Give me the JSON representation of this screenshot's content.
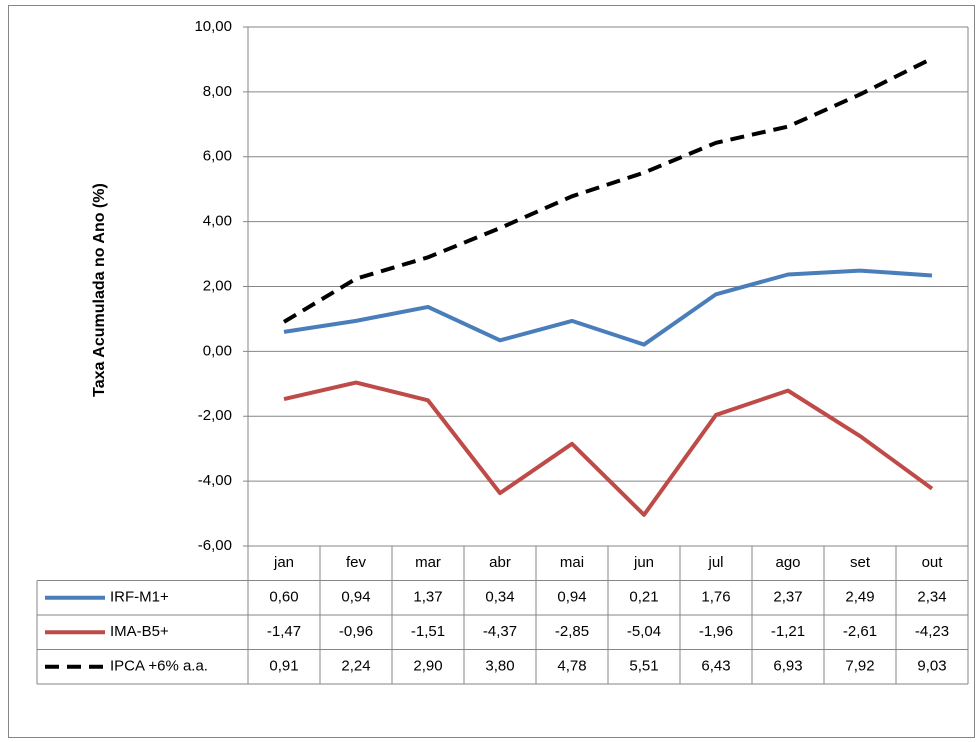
{
  "chart_data": {
    "type": "line",
    "y_label": "Taxa Acumulada no Ano (%)",
    "categories": [
      "jan",
      "fev",
      "mar",
      "abr",
      "mai",
      "jun",
      "jul",
      "ago",
      "set",
      "out"
    ],
    "series": [
      {
        "name": "IRF-M1+",
        "color": "#4a7ebb",
        "line_style": "solid",
        "values": [
          0.6,
          0.94,
          1.37,
          0.34,
          0.94,
          0.21,
          1.76,
          2.37,
          2.49,
          2.34
        ],
        "value_labels": [
          "0,60",
          "0,94",
          "1,37",
          "0,34",
          "0,94",
          "0,21",
          "1,76",
          "2,37",
          "2,49",
          "2,34"
        ]
      },
      {
        "name": "IMA-B5+",
        "color": "#be4b48",
        "line_style": "solid",
        "values": [
          -1.47,
          -0.96,
          -1.51,
          -4.37,
          -2.85,
          -5.04,
          -1.96,
          -1.21,
          -2.61,
          -4.23
        ],
        "value_labels": [
          "-1,47",
          "-0,96",
          "-1,51",
          "-4,37",
          "-2,85",
          "-5,04",
          "-1,96",
          "-1,21",
          "-2,61",
          "-4,23"
        ]
      },
      {
        "name": "IPCA +6% a.a.",
        "color": "#000000",
        "line_style": "dashed",
        "values": [
          0.91,
          2.24,
          2.9,
          3.8,
          4.78,
          5.51,
          6.43,
          6.93,
          7.92,
          9.03
        ],
        "value_labels": [
          "0,91",
          "2,24",
          "2,90",
          "3,80",
          "4,78",
          "5,51",
          "6,43",
          "6,93",
          "7,92",
          "9,03"
        ]
      }
    ],
    "ylim": [
      -6,
      10
    ],
    "yticks": [
      {
        "value": -6,
        "label": "-6,00"
      },
      {
        "value": -4,
        "label": "-4,00"
      },
      {
        "value": -2,
        "label": "-2,00"
      },
      {
        "value": 0,
        "label": "0,00"
      },
      {
        "value": 2,
        "label": "2,00"
      },
      {
        "value": 4,
        "label": "4,00"
      },
      {
        "value": 6,
        "label": "6,00"
      },
      {
        "value": 8,
        "label": "8,00"
      },
      {
        "value": 10,
        "label": "10,00"
      }
    ],
    "grid": true,
    "data_table": true
  }
}
